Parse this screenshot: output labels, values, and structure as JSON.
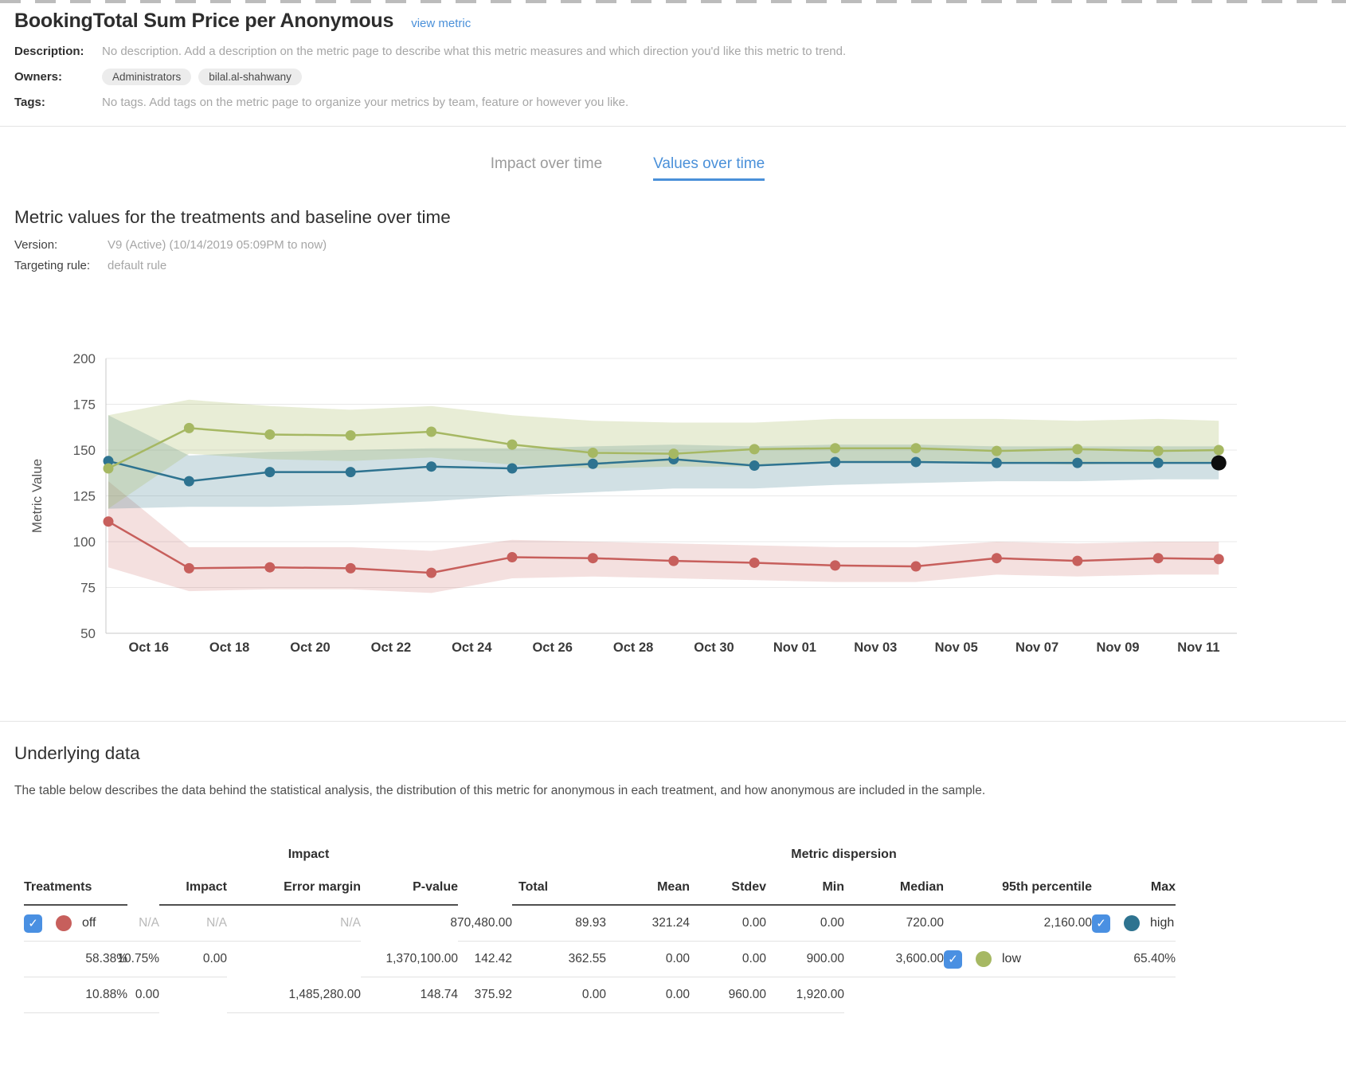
{
  "page": {
    "accent_blue": "#4a90d9",
    "background": "#ffffff"
  },
  "header": {
    "title": "BookingTotal Sum Price per Anonymous",
    "view_metric_link": "view metric"
  },
  "meta": {
    "description_label": "Description:",
    "description": "No description. Add a description on the metric page to describe what this metric measures and which direction you'd like this metric to trend.",
    "owners_label": "Owners:",
    "owners": [
      "Administrators",
      "bilal.al-shahwany"
    ],
    "tags_label": "Tags:",
    "tags": "No tags. Add tags on the metric page to organize your metrics by team, feature or however you like."
  },
  "tabs": [
    {
      "label": "Impact over time",
      "active": false
    },
    {
      "label": "Values over time",
      "active": true
    }
  ],
  "section": {
    "title": "Metric values for the treatments and baseline over time",
    "version_label": "Version:",
    "version_value": "V9 (Active) (10/14/2019 05:09PM to now)",
    "targeting_label": "Targeting rule:",
    "targeting_value": "default rule"
  },
  "chart_data": {
    "type": "line",
    "ylabel": "Metric Value",
    "ylim": [
      50,
      200
    ],
    "yticks": [
      200,
      175,
      150,
      125,
      100,
      75,
      50
    ],
    "grid": true,
    "legend_position": "none",
    "x_tick_labels": [
      "Oct 16",
      "Oct 18",
      "Oct 20",
      "Oct 22",
      "Oct 24",
      "Oct 26",
      "Oct 28",
      "Oct 30",
      "Nov 01",
      "Nov 03",
      "Nov 05",
      "Nov 07",
      "Nov 09",
      "Nov 11"
    ],
    "x_tick_days": [
      1,
      3,
      5,
      7,
      9,
      11,
      13,
      15,
      17,
      19,
      21,
      23,
      25,
      27
    ],
    "x_days": [
      0,
      2,
      4,
      6,
      8,
      10,
      12,
      14,
      16,
      18,
      20,
      22,
      24,
      26,
      27.5
    ],
    "x_point_dates": [
      "Oct 15",
      "Oct 17",
      "Oct 19",
      "Oct 21",
      "Oct 23",
      "Oct 25",
      "Oct 27",
      "Oct 29",
      "Oct 31",
      "Nov 02",
      "Nov 04",
      "Nov 06",
      "Nov 08",
      "Nov 10",
      "Nov 11"
    ],
    "series": [
      {
        "name": "off",
        "color": "#c75f5c",
        "band_color": "rgba(202,100,97,0.20)",
        "values": [
          111,
          85.5,
          86,
          85.5,
          83,
          91.5,
          91,
          89.5,
          88.5,
          87,
          86.5,
          91,
          89.5,
          91,
          90.5
        ],
        "lower": [
          86,
          73,
          74,
          74,
          72,
          80,
          81,
          80,
          79,
          78,
          78,
          82,
          81,
          82,
          82
        ],
        "upper": [
          133,
          97,
          97,
          97,
          95,
          101,
          100,
          99,
          98,
          97,
          97,
          100,
          99,
          100,
          100
        ],
        "last_point_black": false
      },
      {
        "name": "high",
        "color": "#2e7390",
        "band_color": "rgba(47,112,134,0.22)",
        "values": [
          144,
          133,
          138,
          138,
          141,
          140,
          142.5,
          145,
          141.5,
          143.5,
          143.5,
          143,
          143,
          143,
          143
        ],
        "lower": [
          118,
          119,
          119,
          120,
          122,
          125,
          127,
          129,
          129,
          131,
          132,
          133,
          133,
          134,
          134
        ],
        "upper": [
          169,
          147,
          149,
          150,
          151,
          151,
          152,
          153,
          152,
          153,
          153,
          152,
          152,
          152,
          152
        ],
        "last_point_black": true
      },
      {
        "name": "low",
        "color": "#a6b863",
        "band_color": "rgba(168,186,98,0.26)",
        "values": [
          140,
          162,
          158.5,
          158,
          160,
          153,
          148.5,
          148,
          150.5,
          151,
          151,
          149.5,
          150.5,
          149.5,
          150
        ],
        "lower": [
          118,
          148,
          145,
          144,
          146,
          142,
          140,
          141,
          141,
          143,
          143,
          143,
          142,
          143,
          143
        ],
        "upper": [
          169,
          177.5,
          174,
          172,
          174,
          169,
          166,
          165,
          165,
          167,
          167,
          167,
          166,
          167,
          166
        ],
        "last_point_black": false
      }
    ]
  },
  "underlying": {
    "title": "Underlying data",
    "description": "The table below describes the data behind the statistical analysis, the distribution of this metric for anonymous in each treatment, and how anonymous are included in the sample."
  },
  "table": {
    "group_impact": "Impact",
    "group_dispersion": "Metric dispersion",
    "headers": {
      "treatments": "Treatments",
      "impact": "Impact",
      "error_margin": "Error margin",
      "p_value": "P-value",
      "total": "Total",
      "mean": "Mean",
      "stdev": "Stdev",
      "min": "Min",
      "median": "Median",
      "p95": "95th percentile",
      "max": "Max"
    },
    "rows": [
      {
        "checked": true,
        "color": "#c75f5c",
        "label": "off",
        "impact": "N/A",
        "error_margin": "N/A",
        "p_value": "N/A",
        "na": true,
        "total": "870,480.00",
        "mean": "89.93",
        "stdev": "321.24",
        "min": "0.00",
        "median": "0.00",
        "p95": "720.00",
        "max": "2,160.00"
      },
      {
        "checked": true,
        "color": "#2e7390",
        "label": "high",
        "impact": "58.38%",
        "error_margin": "10.75%",
        "p_value": "0.00",
        "na": false,
        "total": "1,370,100.00",
        "mean": "142.42",
        "stdev": "362.55",
        "min": "0.00",
        "median": "0.00",
        "p95": "900.00",
        "max": "3,600.00"
      },
      {
        "checked": true,
        "color": "#a6b863",
        "label": "low",
        "impact": "65.40%",
        "error_margin": "10.88%",
        "p_value": "0.00",
        "na": false,
        "total": "1,485,280.00",
        "mean": "148.74",
        "stdev": "375.92",
        "min": "0.00",
        "median": "0.00",
        "p95": "960.00",
        "max": "1,920.00"
      }
    ]
  }
}
